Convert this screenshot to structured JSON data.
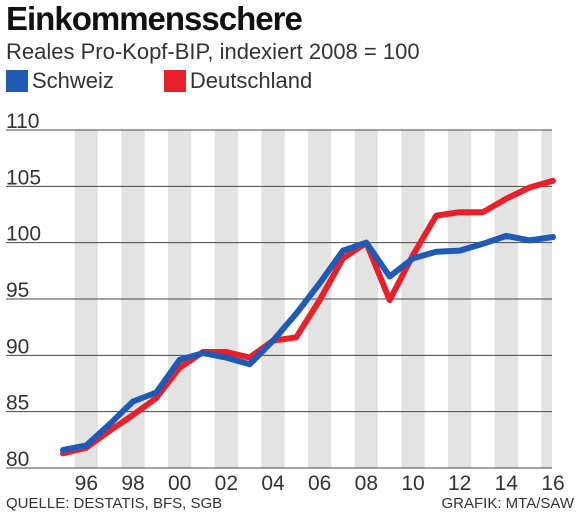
{
  "title": "Einkommensschere",
  "subtitle": "Reales Pro-Kopf-BIP, indexiert 2008 = 100",
  "footer": {
    "source": "QUELLE: DESTATIS, BFS, SGB",
    "credit": "GRAFIK: MTA/SAW"
  },
  "colors": {
    "schweiz": "#1f5bb5",
    "deutschland": "#e8202a",
    "stripe": "#e3e3e3",
    "grid": "#444444"
  },
  "chart_data": {
    "type": "line",
    "title": "Einkommensschere",
    "subtitle": "Reales Pro-Kopf-BIP, indexiert 2008 = 100",
    "x": [
      1995,
      1996,
      1997,
      1998,
      1999,
      2000,
      2001,
      2002,
      2003,
      2004,
      2005,
      2006,
      2007,
      2008,
      2009,
      2010,
      2011,
      2012,
      2013,
      2014,
      2015,
      2016
    ],
    "xlim": [
      1995,
      2016
    ],
    "x_ticks": [
      "96",
      "98",
      "00",
      "02",
      "04",
      "06",
      "08",
      "10",
      "12",
      "14",
      "16"
    ],
    "x_tick_values": [
      1996,
      1998,
      2000,
      2002,
      2004,
      2006,
      2008,
      2010,
      2012,
      2014,
      2016
    ],
    "ylim": [
      80,
      110
    ],
    "y_ticks": [
      "80",
      "85",
      "90",
      "95",
      "100",
      "105",
      "110"
    ],
    "y_tick_values": [
      80,
      85,
      90,
      95,
      100,
      105,
      110
    ],
    "legend_position": "top-left",
    "grid": true,
    "series": [
      {
        "name": "Schweiz",
        "values": [
          81.6,
          82.0,
          83.9,
          85.9,
          86.7,
          89.6,
          90.2,
          89.8,
          89.2,
          91.3,
          93.7,
          96.4,
          99.3,
          100.0,
          97.0,
          98.6,
          99.2,
          99.3,
          99.9,
          100.6,
          100.2,
          100.5
        ]
      },
      {
        "name": "Deutschland",
        "values": [
          81.3,
          81.8,
          83.3,
          84.7,
          86.2,
          88.9,
          90.3,
          90.3,
          89.8,
          91.3,
          91.6,
          94.9,
          98.6,
          100.0,
          94.9,
          98.9,
          102.4,
          102.7,
          102.7,
          103.9,
          104.9,
          105.5
        ]
      }
    ]
  }
}
